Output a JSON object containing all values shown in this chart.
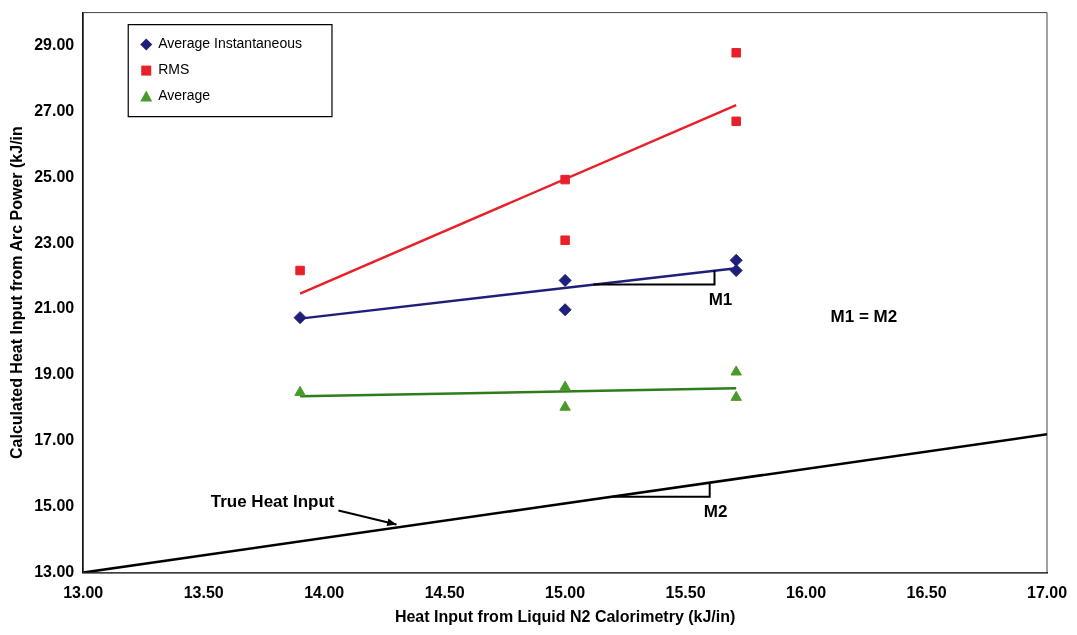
{
  "chart_data": {
    "type": "scatter",
    "xlabel": "Heat Input from Liquid N2 Calorimetry (kJ/in)",
    "ylabel": "Calculated Heat Input from Arc Power (kJ/in",
    "xlim": [
      13,
      17
    ],
    "ylim": [
      13,
      30
    ],
    "xticks": [
      {
        "value": 13,
        "label": "13.00"
      },
      {
        "value": 13.5,
        "label": "13.50"
      },
      {
        "value": 14,
        "label": "14.00"
      },
      {
        "value": 14.5,
        "label": "14.50"
      },
      {
        "value": 15,
        "label": "15.00"
      },
      {
        "value": 15.5,
        "label": "15.50"
      },
      {
        "value": 16,
        "label": "16.00"
      },
      {
        "value": 16.5,
        "label": "16.50"
      },
      {
        "value": 17,
        "label": "17.00"
      }
    ],
    "yticks": [
      {
        "value": 13,
        "label": "13.00"
      },
      {
        "value": 15,
        "label": "15.00"
      },
      {
        "value": 17,
        "label": "17.00"
      },
      {
        "value": 19,
        "label": "19.00"
      },
      {
        "value": 21,
        "label": "21.00"
      },
      {
        "value": 23,
        "label": "23.00"
      },
      {
        "value": 25,
        "label": "25.00"
      },
      {
        "value": 27,
        "label": "27.00"
      },
      {
        "value": 29,
        "label": "29.00"
      }
    ],
    "legend": "top left",
    "grid": false,
    "series": [
      {
        "name": "Average Instantaneous",
        "color": "#1f1f7a",
        "marker": "diamond",
        "x": [
          13.9,
          15.0,
          15.0,
          15.71,
          15.71
        ],
        "values": [
          20.74,
          21.87,
          20.98,
          22.48,
          22.17
        ]
      },
      {
        "name": "RMS",
        "color": "#e8202a",
        "marker": "square",
        "x": [
          13.9,
          15.0,
          15.0,
          15.71,
          15.71
        ],
        "values": [
          22.17,
          24.93,
          23.09,
          28.78,
          26.7
        ]
      },
      {
        "name": "Average",
        "color": "#4a9a2a",
        "marker": "triangle",
        "x": [
          13.9,
          15.0,
          15.0,
          15.71,
          15.71
        ],
        "values": [
          18.47,
          18.63,
          18.02,
          19.09,
          18.32
        ]
      },
      {
        "type": "line",
        "color": "#1f1f7a",
        "x": [
          13.9,
          15.71
        ],
        "values": [
          20.71,
          22.24
        ]
      },
      {
        "type": "line",
        "color": "#e8202a",
        "x": [
          13.9,
          15.71
        ],
        "values": [
          21.47,
          27.19
        ]
      },
      {
        "type": "line",
        "color": "#2e7d1a",
        "x": [
          13.9,
          15.71
        ],
        "values": [
          18.35,
          18.6
        ]
      },
      {
        "type": "line",
        "color": "#000000",
        "x": [
          13,
          17
        ],
        "values": [
          13,
          17.2
        ]
      }
    ],
    "annotations": [
      {
        "text": "M1",
        "x": 15.62,
        "y": 22.17
      },
      "M1 = M2",
      {
        "text": "M2",
        "x": 15.6,
        "y": 15.73
      },
      {
        "text": "True Heat Input",
        "x": 14.3,
        "y": 14.37
      }
    ]
  }
}
